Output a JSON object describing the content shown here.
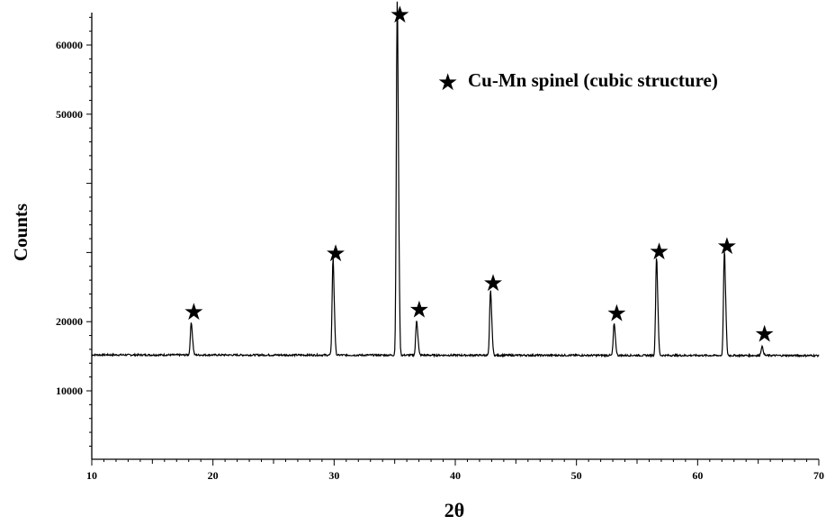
{
  "chart_data": {
    "type": "line",
    "title": "",
    "xlabel": "2θ",
    "ylabel": "Counts",
    "xlim": [
      10,
      70
    ],
    "ylim": [
      0,
      65000
    ],
    "x_ticks": [
      10,
      20,
      30,
      40,
      50,
      60,
      70
    ],
    "x_tick_labels": [
      "10",
      "20",
      "30",
      "40",
      "50",
      "60",
      "70"
    ],
    "y_ticks": [
      10000,
      20000,
      50000,
      60000
    ],
    "y_tick_labels": [
      "10000",
      "20000",
      "50000",
      "60000"
    ],
    "grid": false,
    "legend": {
      "position": "top-right",
      "entries": [
        {
          "marker": "★",
          "label": "Cu-Mn spinel (cubic structure)"
        }
      ]
    },
    "series": [
      {
        "baseline": [
          [
            10,
            15200
          ],
          [
            70,
            15100
          ]
        ],
        "peaks": [
          {
            "x": 18.2,
            "y": 19500,
            "marked": true
          },
          {
            "x": 29.9,
            "y": 28000,
            "marked": true
          },
          {
            "x": 35.2,
            "y": 62500,
            "marked": true
          },
          {
            "x": 36.8,
            "y": 19800,
            "marked": true
          },
          {
            "x": 42.9,
            "y": 23700,
            "marked": true
          },
          {
            "x": 53.1,
            "y": 19300,
            "marked": true
          },
          {
            "x": 56.6,
            "y": 28200,
            "marked": true
          },
          {
            "x": 62.2,
            "y": 29000,
            "marked": true
          },
          {
            "x": 65.3,
            "y": 16300,
            "marked": true
          }
        ]
      }
    ]
  }
}
